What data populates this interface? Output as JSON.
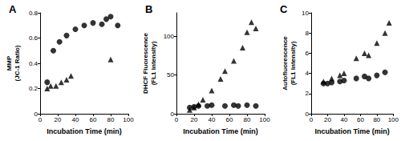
{
  "chart_data": [
    {
      "type": "scatter",
      "title": "A",
      "x_label": "Incubation Time (min)",
      "y_label": "MMP\n(JC-1 Ratio)",
      "xlim": [
        0,
        100
      ],
      "xticks": [
        0,
        20,
        40,
        60,
        80,
        100
      ],
      "ylim": [
        0,
        0.8
      ],
      "yticks": [
        0,
        0.2,
        0.4,
        0.6,
        0.8
      ],
      "grid": false,
      "series": [
        {
          "marker": "circle",
          "color": "#000000",
          "x": [
            8,
            15,
            22,
            30,
            40,
            50,
            60,
            70,
            75,
            80,
            88
          ],
          "values": [
            0.25,
            0.5,
            0.57,
            0.62,
            0.67,
            0.7,
            0.72,
            0.71,
            0.75,
            0.77,
            0.7
          ]
        },
        {
          "marker": "triangle",
          "color": "#000000",
          "x": [
            8,
            12,
            18,
            24,
            30,
            35,
            80
          ],
          "values": [
            0.2,
            0.22,
            0.22,
            0.25,
            0.27,
            0.3,
            0.43
          ]
        }
      ]
    },
    {
      "type": "scatter",
      "title": "B",
      "x_label": "Incubation Time (min)",
      "y_label": "DHCF Fluorescence\n(FL1 Intensity)",
      "xlim": [
        0,
        100
      ],
      "xticks": [
        0,
        20,
        40,
        60,
        80,
        100
      ],
      "ylim": [
        0,
        130
      ],
      "yticks": [
        0,
        50,
        100
      ],
      "grid": false,
      "series": [
        {
          "marker": "circle",
          "color": "#000000",
          "x": [
            15,
            20,
            25,
            35,
            40,
            55,
            65,
            70,
            80,
            90
          ],
          "values": [
            8,
            9,
            10,
            10,
            11,
            10,
            11,
            10,
            11,
            10
          ]
        },
        {
          "marker": "triangle",
          "color": "#000000",
          "x": [
            15,
            20,
            25,
            30,
            40,
            50,
            55,
            65,
            75,
            80,
            85,
            90
          ],
          "values": [
            5,
            8,
            12,
            18,
            30,
            45,
            55,
            68,
            85,
            105,
            118,
            110
          ]
        }
      ]
    },
    {
      "type": "scatter",
      "title": "C",
      "x_label": "Incubation Time (min)",
      "y_label": "Autofluorescence\n(FL1 Intensity)",
      "xlim": [
        0,
        100
      ],
      "xticks": [
        0,
        20,
        40,
        60,
        80,
        100
      ],
      "ylim": [
        0,
        10
      ],
      "yticks": [
        0,
        2,
        4,
        6,
        8,
        10
      ],
      "grid": false,
      "series": [
        {
          "marker": "circle",
          "color": "#000000",
          "x": [
            15,
            20,
            25,
            35,
            40,
            55,
            65,
            70,
            80,
            90
          ],
          "values": [
            3,
            3,
            3.1,
            3.2,
            3.3,
            3.5,
            3.7,
            3.5,
            3.8,
            4.1
          ]
        },
        {
          "marker": "triangle",
          "color": "#000000",
          "x": [
            15,
            25,
            35,
            40,
            55,
            65,
            70,
            80,
            90,
            95
          ],
          "values": [
            3.2,
            3.5,
            3.8,
            4,
            5.5,
            6,
            5.8,
            7,
            8,
            9
          ]
        }
      ]
    }
  ]
}
